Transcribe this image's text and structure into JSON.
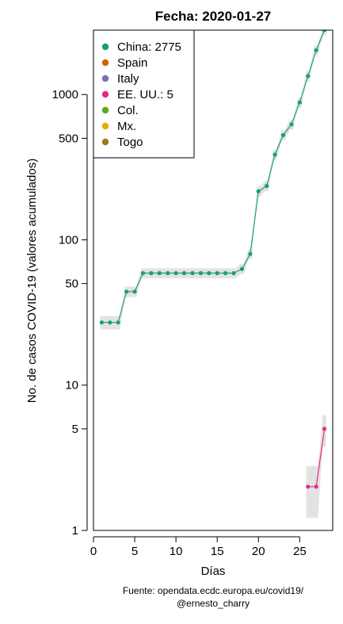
{
  "chart_data": {
    "type": "line",
    "title": "Fecha: 2020-01-27",
    "xlabel": "Días",
    "ylabel": "No. de casos COVID-19 (valores acumulados)",
    "y_scale": "log",
    "xlim": [
      0,
      29
    ],
    "ylim": [
      1,
      2775
    ],
    "x_ticks": [
      0,
      5,
      10,
      15,
      20,
      25
    ],
    "y_ticks": [
      1,
      5,
      10,
      50,
      100,
      500,
      1000
    ],
    "grid": false,
    "legend_position": "top-left",
    "legend": [
      {
        "label": "China: 2775",
        "color": "#1b9e77"
      },
      {
        "label": "Spain",
        "color": "#d95f02"
      },
      {
        "label": "Italy",
        "color": "#7570b3"
      },
      {
        "label": "EE. UU.: 5",
        "color": "#e7298a"
      },
      {
        "label": "Col.",
        "color": "#66a61e"
      },
      {
        "label": "Mx.",
        "color": "#e6ab02"
      },
      {
        "label": "Togo",
        "color": "#a6761d"
      }
    ],
    "series": [
      {
        "name": "China",
        "color": "#1b9e77",
        "x": [
          1,
          2,
          3,
          4,
          5,
          6,
          7,
          8,
          9,
          10,
          11,
          12,
          13,
          14,
          15,
          16,
          17,
          18,
          19,
          20,
          21,
          22,
          23,
          24,
          25,
          26,
          27,
          28
        ],
        "y": [
          27,
          27,
          27,
          44,
          44,
          59,
          59,
          59,
          59,
          59,
          59,
          59,
          59,
          59,
          59,
          59,
          59,
          63,
          80,
          216,
          235,
          386,
          526,
          623,
          882,
          1340,
          2019,
          2775
        ]
      },
      {
        "name": "EE. UU.",
        "color": "#e7298a",
        "x": [
          26,
          27,
          28
        ],
        "y": [
          2,
          2,
          5
        ]
      }
    ]
  },
  "footer": {
    "source_line1": "Fuente: opendata.ecdc.europa.eu/covid19/",
    "source_line2": "@ernesto_charry"
  }
}
